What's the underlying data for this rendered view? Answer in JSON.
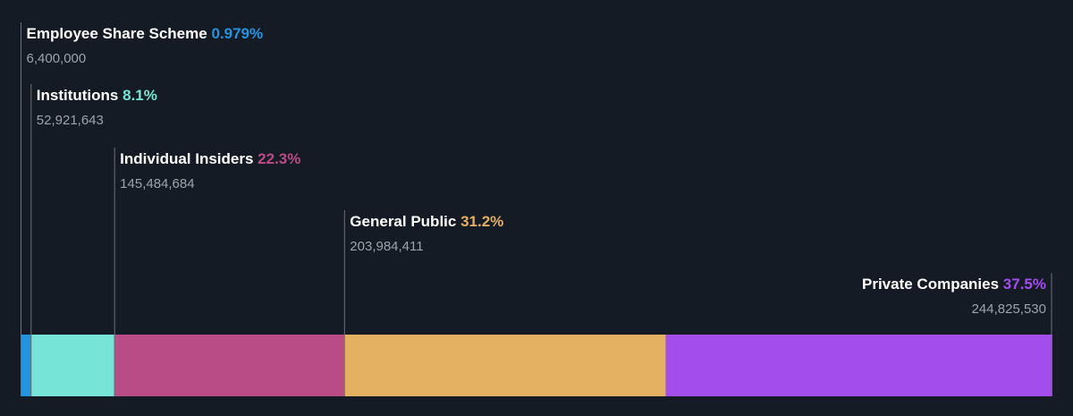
{
  "chart_data": {
    "type": "stacked-bar",
    "categories": [
      "Employee Share Scheme",
      "Institutions",
      "Individual Insiders",
      "General Public",
      "Private Companies"
    ],
    "values": [
      0.979,
      8.1,
      22.3,
      31.2,
      37.5
    ],
    "value_labels": [
      "0.979%",
      "8.1%",
      "22.3%",
      "31.2%",
      "37.5%"
    ],
    "shares": [
      "6,400,000",
      "52,921,643",
      "145,484,684",
      "203,984,411",
      "244,825,530"
    ],
    "colors": [
      "#2394df",
      "#76e4d6",
      "#b94b86",
      "#e4b062",
      "#a34ded"
    ],
    "xlim": [
      0,
      100
    ]
  }
}
